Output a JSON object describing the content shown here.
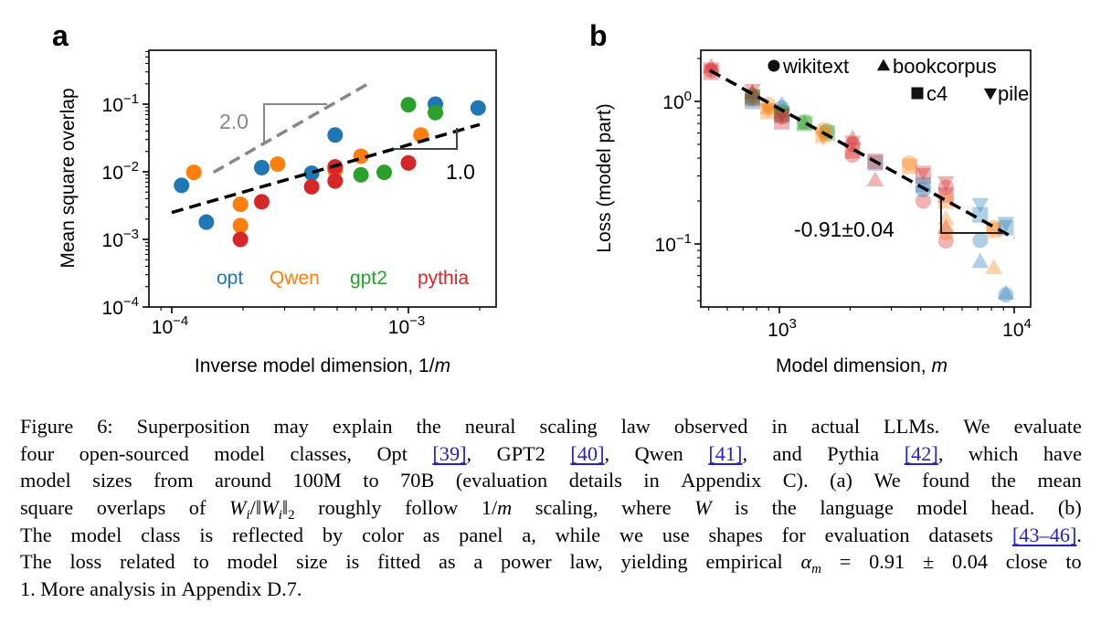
{
  "colors": {
    "opt": "#1f77b4",
    "Qwen": "#ff7f0e",
    "gpt2": "#2ca02c",
    "pythia": "#d62728"
  },
  "chart_data": [
    {
      "panel_label": "a",
      "type": "scatter",
      "xlabel": "Inverse model dimension, 1/",
      "xlabel_italic": "m",
      "ylabel": "Mean square overlap",
      "xscale": "log",
      "yscale": "log",
      "xlim": [
        8e-05,
        0.0023
      ],
      "ylim": [
        0.0001,
        0.63
      ],
      "xticks": [
        {
          "v": 0.0001,
          "base": "10",
          "exp": "−4"
        },
        {
          "v": 0.001,
          "base": "10",
          "exp": "−3"
        }
      ],
      "yticks": [
        {
          "v": 0.0001,
          "base": "10",
          "exp": "−4"
        },
        {
          "v": 0.001,
          "base": "10",
          "exp": "−3"
        },
        {
          "v": 0.01,
          "base": "10",
          "exp": "−2"
        },
        {
          "v": 0.1,
          "base": "10",
          "exp": "−1"
        }
      ],
      "legend": {
        "placement": "bottom",
        "entries": [
          "opt",
          "Qwen",
          "gpt2",
          "pythia"
        ]
      },
      "series": [
        {
          "name": "opt",
          "points": [
            [
              0.00011,
              0.0063
            ],
            [
              0.00014,
              0.0018
            ],
            [
              0.00024,
              0.0115
            ],
            [
              0.00039,
              0.0095
            ],
            [
              0.00049,
              0.035
            ],
            [
              0.0013,
              0.1
            ],
            [
              0.00197,
              0.088
            ]
          ]
        },
        {
          "name": "Qwen",
          "points": [
            [
              0.000124,
              0.0098
            ],
            [
              0.000195,
              0.0033
            ],
            [
              0.000195,
              0.0016
            ],
            [
              0.00028,
              0.013
            ],
            [
              0.00049,
              0.0105
            ],
            [
              0.00063,
              0.017
            ],
            [
              0.00113,
              0.035
            ]
          ]
        },
        {
          "name": "gpt2",
          "points": [
            [
              0.00063,
              0.009
            ],
            [
              0.00079,
              0.0098
            ],
            [
              0.001,
              0.098
            ],
            [
              0.0013,
              0.075
            ]
          ]
        },
        {
          "name": "pythia",
          "points": [
            [
              0.000195,
              0.001
            ],
            [
              0.00024,
              0.0036
            ],
            [
              0.00039,
              0.006
            ],
            [
              0.00049,
              0.0118
            ],
            [
              0.00049,
              0.0073
            ],
            [
              0.001,
              0.0135
            ]
          ]
        }
      ],
      "fits": [
        {
          "label": "1.0",
          "slope": 1.0,
          "x": [
            0.0001,
            0.002
          ],
          "y": [
            0.0025,
            0.05
          ],
          "style": "black-dashed"
        },
        {
          "label": "2.0",
          "slope": 2.0,
          "x": [
            0.00015,
            0.0007
          ],
          "y": [
            0.0098,
            0.215
          ],
          "style": "gray-dashed"
        }
      ]
    },
    {
      "panel_label": "b",
      "type": "scatter",
      "xlabel": "Model dimension, ",
      "xlabel_italic": "m",
      "ylabel": "Loss (model part)",
      "xscale": "log",
      "yscale": "log",
      "xlim": [
        462,
        11800
      ],
      "ylim": [
        0.036,
        2.28
      ],
      "xticks": [
        {
          "v": 1000,
          "base": "10",
          "exp": "3"
        },
        {
          "v": 10000,
          "base": "10",
          "exp": "4"
        }
      ],
      "yticks": [
        {
          "v": 0.1,
          "base": "10",
          "exp": "−1"
        },
        {
          "v": 1,
          "base": "10",
          "exp": "0"
        }
      ],
      "legend": {
        "placement": "top-right",
        "entries": [
          {
            "marker": "circle",
            "label": "wikitext"
          },
          {
            "marker": "triangle-up",
            "label": "bookcorpus"
          },
          {
            "marker": "square",
            "label": "c4"
          },
          {
            "marker": "triangle-down",
            "label": "pile"
          }
        ]
      },
      "fit": {
        "label": "-0.91±0.04",
        "slope": -0.91,
        "x": [
          506,
          10000
        ],
        "y": [
          1.65,
          0.11
        ]
      },
      "points": [
        [
          512,
          1.65,
          "pythia",
          "w"
        ],
        [
          512,
          1.75,
          "pythia",
          "b"
        ],
        [
          512,
          1.6,
          "pythia",
          "c"
        ],
        [
          512,
          1.7,
          "pythia",
          "p"
        ],
        [
          768,
          1.05,
          "opt",
          "w"
        ],
        [
          768,
          1.15,
          "opt",
          "b"
        ],
        [
          768,
          1.0,
          "opt",
          "c"
        ],
        [
          768,
          1.1,
          "opt",
          "p"
        ],
        [
          768,
          1.1,
          "pythia",
          "w"
        ],
        [
          768,
          1.05,
          "pythia",
          "c"
        ],
        [
          768,
          1.2,
          "pythia",
          "p"
        ],
        [
          768,
          1.15,
          "pythia",
          "b"
        ],
        [
          768,
          1.08,
          "gpt2",
          "c"
        ],
        [
          896,
          0.95,
          "Qwen",
          "w"
        ],
        [
          896,
          0.9,
          "Qwen",
          "b"
        ],
        [
          896,
          0.85,
          "Qwen",
          "c"
        ],
        [
          896,
          0.88,
          "Qwen",
          "p"
        ],
        [
          1024,
          0.9,
          "opt",
          "w"
        ],
        [
          1024,
          0.95,
          "opt",
          "b"
        ],
        [
          1024,
          0.8,
          "opt",
          "c"
        ],
        [
          1024,
          0.82,
          "gpt2",
          "c"
        ],
        [
          1024,
          0.85,
          "gpt2",
          "w"
        ],
        [
          1024,
          0.72,
          "pythia",
          "c"
        ],
        [
          1024,
          0.78,
          "pythia",
          "w"
        ],
        [
          1024,
          0.8,
          "pythia",
          "p"
        ],
        [
          1280,
          0.7,
          "gpt2",
          "c"
        ],
        [
          1280,
          0.72,
          "gpt2",
          "w"
        ],
        [
          1280,
          0.7,
          "gpt2",
          "b"
        ],
        [
          1600,
          0.6,
          "gpt2",
          "c"
        ],
        [
          1600,
          0.62,
          "gpt2",
          "w"
        ],
        [
          1536,
          0.63,
          "Qwen",
          "w"
        ],
        [
          1536,
          0.58,
          "Qwen",
          "c"
        ],
        [
          1536,
          0.56,
          "Qwen",
          "p"
        ],
        [
          2048,
          0.5,
          "pythia",
          "w"
        ],
        [
          2048,
          0.55,
          "pythia",
          "b"
        ],
        [
          2048,
          0.45,
          "pythia",
          "c"
        ],
        [
          2048,
          0.52,
          "pythia",
          "p"
        ],
        [
          2048,
          0.42,
          "pythia",
          "w"
        ],
        [
          2560,
          0.37,
          "opt",
          "c"
        ],
        [
          2560,
          0.38,
          "pythia",
          "c"
        ],
        [
          2560,
          0.28,
          "pythia",
          "b"
        ],
        [
          3584,
          0.37,
          "Qwen",
          "w"
        ],
        [
          3584,
          0.35,
          "Qwen",
          "c"
        ],
        [
          4096,
          0.3,
          "pythia",
          "c"
        ],
        [
          4096,
          0.2,
          "pythia",
          "w"
        ],
        [
          4096,
          0.32,
          "pythia",
          "p"
        ],
        [
          4096,
          0.24,
          "opt",
          "w"
        ],
        [
          4096,
          0.26,
          "opt",
          "c"
        ],
        [
          5120,
          0.25,
          "pythia",
          "w"
        ],
        [
          5120,
          0.22,
          "pythia",
          "c"
        ],
        [
          5120,
          0.27,
          "pythia",
          "p"
        ],
        [
          5120,
          0.105,
          "pythia",
          "w"
        ],
        [
          5120,
          0.13,
          "pythia",
          "b"
        ],
        [
          5120,
          0.2,
          "Qwen",
          "c"
        ],
        [
          5120,
          0.15,
          "Qwen",
          "b"
        ],
        [
          5120,
          0.12,
          "Qwen",
          "w"
        ],
        [
          7168,
          0.19,
          "opt",
          "p"
        ],
        [
          7168,
          0.16,
          "opt",
          "c"
        ],
        [
          7168,
          0.106,
          "opt",
          "w"
        ],
        [
          7168,
          0.075,
          "opt",
          "b"
        ],
        [
          8192,
          0.125,
          "Qwen",
          "c"
        ],
        [
          8192,
          0.13,
          "Qwen",
          "w"
        ],
        [
          8192,
          0.068,
          "Qwen",
          "b"
        ],
        [
          9216,
          0.14,
          "opt",
          "p"
        ],
        [
          9216,
          0.13,
          "opt",
          "c"
        ],
        [
          9216,
          0.044,
          "opt",
          "w"
        ],
        [
          9216,
          0.045,
          "opt",
          "b"
        ]
      ]
    }
  ],
  "caption": {
    "lines": [
      [
        {
          "k": "text",
          "t": "Figure 6: Superposition may explain the neural scaling law observed in actual LLMs. We evaluate"
        }
      ],
      [
        {
          "k": "text",
          "t": "four open-sourced model classes, Opt "
        },
        {
          "k": "ref",
          "t": "[39]"
        },
        {
          "k": "text",
          "t": ", GPT2 "
        },
        {
          "k": "ref",
          "t": "[40]"
        },
        {
          "k": "text",
          "t": ", Qwen "
        },
        {
          "k": "ref",
          "t": "[41]"
        },
        {
          "k": "text",
          "t": ", and Pythia "
        },
        {
          "k": "ref",
          "t": "[42]"
        },
        {
          "k": "text",
          "t": ", which have"
        }
      ],
      [
        {
          "k": "text",
          "t": "model sizes from around 100M to 70B (evaluation details in Appendix C). (a) We found the mean"
        }
      ],
      [
        {
          "k": "text",
          "t": "square overlaps of "
        },
        {
          "k": "math",
          "t": "W"
        },
        {
          "k": "sub",
          "t": "i"
        },
        {
          "k": "text",
          "t": "/‖"
        },
        {
          "k": "math",
          "t": "W"
        },
        {
          "k": "sub",
          "t": "i"
        },
        {
          "k": "text",
          "t": "‖"
        },
        {
          "k": "subr",
          "t": "2"
        },
        {
          "k": "text",
          "t": " roughly follow 1/"
        },
        {
          "k": "math",
          "t": "m"
        },
        {
          "k": "text",
          "t": " scaling, where "
        },
        {
          "k": "math",
          "t": "W"
        },
        {
          "k": "text",
          "t": " is the language model head. (b)"
        }
      ],
      [
        {
          "k": "text",
          "t": "The model class is reflected by color as panel a, while we use shapes for evaluation datasets "
        },
        {
          "k": "ref",
          "t": "[43–46]"
        },
        {
          "k": "text",
          "t": "."
        }
      ],
      [
        {
          "k": "text",
          "t": "The loss related to model size is fitted as a power law, yielding empirical "
        },
        {
          "k": "math",
          "t": "α"
        },
        {
          "k": "sub",
          "t": "m"
        },
        {
          "k": "text",
          "t": " = 0.91 ± 0.04 close to"
        }
      ],
      [
        {
          "k": "text",
          "t": "1. More analysis in Appendix D.7."
        }
      ]
    ]
  }
}
